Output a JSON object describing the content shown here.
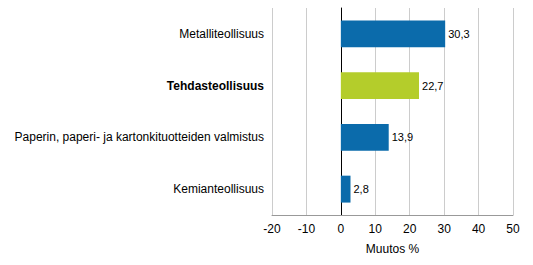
{
  "chart_data": {
    "type": "bar",
    "orientation": "horizontal",
    "categories": [
      "Metalliteollisuus",
      "Tehdasteollisuus",
      "Paperin, paperi- ja kartonkituotteiden valmistus",
      "Kemianteollisuus"
    ],
    "values": [
      30.3,
      22.7,
      13.9,
      2.8
    ],
    "value_labels": [
      "30,3",
      "22,7",
      "13,9",
      "2,8"
    ],
    "colors": [
      "#0b6bab",
      "#b4cd2b",
      "#0b6bab",
      "#0b6bab"
    ],
    "data_labels": true,
    "xlabel": "Muutos %",
    "xlim": [
      -20,
      50
    ],
    "xticks": [
      -20,
      -10,
      0,
      10,
      20,
      30,
      40,
      50
    ],
    "grid": true
  }
}
